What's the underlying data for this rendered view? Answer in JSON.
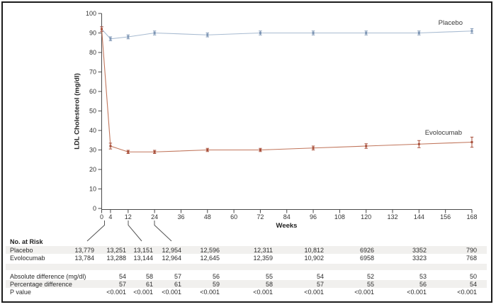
{
  "colors": {
    "placebo_line": "#a8bbd1",
    "placebo_marker": "#7d95b4",
    "evolocumab_line": "#c1765c",
    "evolocumab_marker": "#a84f3a",
    "row_shade": "#f1f0ee",
    "axis": "#4a4a4a",
    "frame": "#1c1c1c"
  },
  "chart_data": {
    "type": "line",
    "title": "",
    "xlabel": "Weeks",
    "ylabel": "LDL Cholesterol (mg/dl)",
    "xlim": [
      0,
      168
    ],
    "ylim": [
      0,
      100
    ],
    "grid": false,
    "legend_position": "inline-labels",
    "x_ticks": [
      0,
      4,
      12,
      24,
      36,
      48,
      60,
      72,
      84,
      96,
      108,
      120,
      132,
      144,
      156,
      168
    ],
    "y_ticks": [
      0,
      10,
      20,
      30,
      40,
      50,
      60,
      70,
      80,
      90,
      100
    ],
    "x": [
      0,
      4,
      12,
      24,
      48,
      72,
      96,
      120,
      144,
      168
    ],
    "series": [
      {
        "name": "Placebo",
        "values": [
          92,
          87,
          88,
          90,
          89,
          90,
          90,
          90,
          90,
          91
        ],
        "err": [
          1.2,
          1,
          1,
          1,
          1,
          1,
          1,
          1,
          1,
          1.2
        ]
      },
      {
        "name": "Evolocumab",
        "values": [
          92,
          32,
          29,
          29,
          30,
          30,
          31,
          32,
          33,
          34
        ],
        "err": [
          1.2,
          1.5,
          0.8,
          0.8,
          0.8,
          0.8,
          1,
          1.2,
          1.8,
          2.6
        ]
      }
    ]
  },
  "table": {
    "header": "No. at Risk",
    "rows": [
      {
        "label": "Placebo",
        "shaded": true,
        "values": [
          "13,779",
          "13,251",
          "13,151",
          "12,954",
          "12,596",
          "12,311",
          "10,812",
          "6926",
          "3352",
          "790"
        ]
      },
      {
        "label": "Evolocumab",
        "shaded": false,
        "values": [
          "13,784",
          "13,288",
          "13,144",
          "12,964",
          "12,645",
          "12,359",
          "10,902",
          "6958",
          "3323",
          "768"
        ]
      },
      {
        "label": "",
        "shaded": true,
        "spacer": true,
        "values": [
          "",
          "",
          "",
          "",
          "",
          "",
          "",
          "",
          "",
          ""
        ]
      },
      {
        "label": "Absolute difference (mg/dl)",
        "shaded": false,
        "values": [
          "",
          "54",
          "58",
          "57",
          "56",
          "55",
          "54",
          "52",
          "53",
          "50"
        ]
      },
      {
        "label": "Percentage difference",
        "shaded": true,
        "values": [
          "",
          "57",
          "61",
          "61",
          "59",
          "58",
          "57",
          "55",
          "56",
          "54"
        ]
      },
      {
        "label": "P value",
        "shaded": false,
        "values": [
          "",
          "<0.001",
          "<0.001",
          "<0.001",
          "<0.001",
          "<0.001",
          "<0.001",
          "<0.001",
          "<0.001",
          "<0.001"
        ]
      }
    ]
  }
}
